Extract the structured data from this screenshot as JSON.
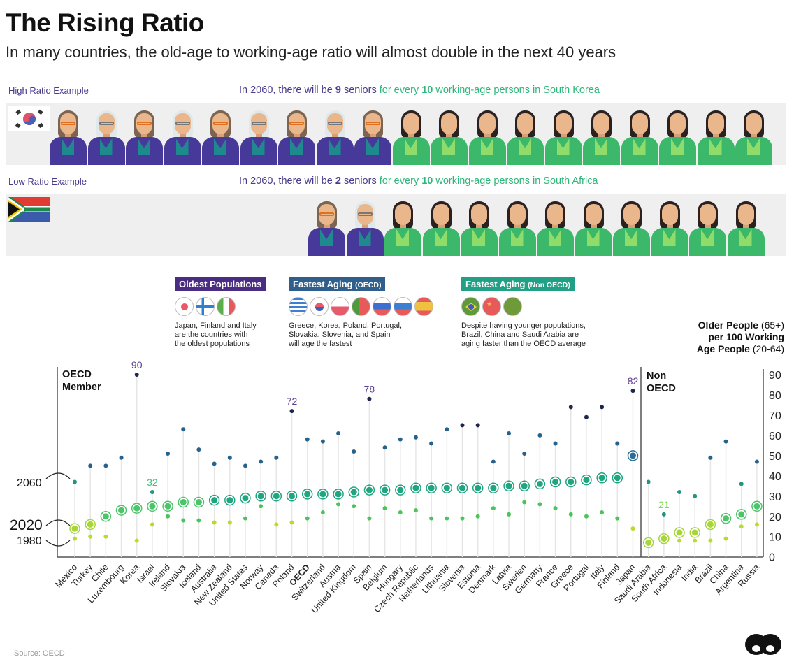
{
  "title": "The Rising Ratio",
  "subtitle": "In many countries, the old-age to working-age ratio will almost double in the next 40 years",
  "high_example": {
    "label": "High Ratio Example",
    "pre": "In 2060, there will be",
    "seniors": "9",
    "seniors_word": "seniors",
    "mid": "for every",
    "workers": "10",
    "post": "working-age persons in South Korea",
    "flag": "south-korea-flag",
    "senior_count": 9,
    "worker_count": 10
  },
  "low_example": {
    "label": "Low Ratio Example",
    "pre": "In 2060, there will be",
    "seniors": "2",
    "seniors_word": "seniors",
    "mid": "for every",
    "workers": "10",
    "post": "working-age persons in South Africa",
    "flag": "south-africa-flag",
    "senior_count": 2,
    "worker_count": 10
  },
  "legend": [
    {
      "title": "Oldest Populations",
      "suffix": "",
      "color": "#4b2c83",
      "flags": [
        "japan",
        "finland",
        "italy"
      ],
      "text": [
        "Japan, Finland and Italy",
        "are the countries with",
        "the oldest populations"
      ]
    },
    {
      "title": "Fastest Aging",
      "suffix": "(OECD)",
      "color": "#2f5f8a",
      "flags": [
        "greece",
        "korea",
        "poland",
        "portugal",
        "slovakia",
        "slovenia",
        "spain"
      ],
      "text": [
        "Greece, Korea, Poland, Portugal,",
        "Slovakia, Slovenia, and Spain",
        "will age the fastest"
      ]
    },
    {
      "title": "Fastest Aging",
      "suffix": "(Non OECD)",
      "color": "#22a085",
      "flags": [
        "brazil",
        "china",
        "saudi-arabia"
      ],
      "text": [
        "Despite having younger populations,",
        "Brazil, China and Saudi Arabia are",
        "aging faster than the OECD average"
      ]
    }
  ],
  "right_note": {
    "l1": "Older People",
    "l1b": "(65+)",
    "l2": "per 100 Working",
    "l3": "Age People",
    "l3b": "(20-64)"
  },
  "source": "Source: OECD",
  "chart_data": {
    "type": "dot-plot",
    "ylabel": "Older People (65+) per 100 Working Age People (20-64)",
    "ylim": [
      0,
      90
    ],
    "yticks": [
      0,
      10,
      20,
      30,
      40,
      50,
      60,
      70,
      80,
      90
    ],
    "groups": [
      {
        "label_l1": "OECD",
        "label_l2": "Member"
      },
      {
        "label_l1": "Non",
        "label_l2": "OECD"
      }
    ],
    "year_labels": {
      "y2060": "2060",
      "y2020": "2020",
      "y1980": "1980"
    },
    "categories": [
      "Mexico",
      "Turkey",
      "Chile",
      "Luxembourg",
      "Korea",
      "Israel",
      "Ireland",
      "Slovakia",
      "Iceland",
      "Australia",
      "New Zealand",
      "United States",
      "Norway",
      "Canada",
      "Poland",
      "OECD",
      "Switzerland",
      "Austria",
      "United Kingdom",
      "Spain",
      "Belgium",
      "Hungary",
      "Czech Republic",
      "Netherlands",
      "Lithuania",
      "Slovenia",
      "Estonia",
      "Denmark",
      "Latvia",
      "Sweden",
      "Germany",
      "France",
      "Greece",
      "Portugal",
      "Italy",
      "Finland",
      "Japan",
      "Saudi Arabia",
      "South Africa",
      "Indonesia",
      "India",
      "Brazil",
      "China",
      "Argentina",
      "Russia"
    ],
    "group_of": [
      0,
      0,
      0,
      0,
      0,
      0,
      0,
      0,
      0,
      0,
      0,
      0,
      0,
      0,
      0,
      0,
      0,
      0,
      0,
      0,
      0,
      0,
      0,
      0,
      0,
      0,
      0,
      0,
      0,
      0,
      0,
      0,
      0,
      0,
      0,
      0,
      0,
      1,
      1,
      1,
      1,
      1,
      1,
      1,
      1
    ],
    "series": [
      {
        "name": "2060",
        "values": [
          37,
          45,
          45,
          49,
          90,
          32,
          51,
          63,
          53,
          46,
          49,
          45,
          47,
          49,
          72,
          58,
          57,
          61,
          52,
          78,
          54,
          58,
          59,
          56,
          63,
          65,
          65,
          47,
          61,
          51,
          60,
          56,
          74,
          69,
          74,
          56,
          82,
          37,
          21,
          32,
          30,
          49,
          57,
          36,
          47
        ]
      },
      {
        "name": "2020",
        "values": [
          14,
          16,
          20,
          23,
          24,
          25,
          25,
          27,
          27,
          28,
          28,
          29,
          30,
          30,
          30,
          31,
          31,
          31,
          32,
          33,
          33,
          33,
          34,
          34,
          34,
          34,
          34,
          34,
          35,
          35,
          36,
          37,
          37,
          38,
          39,
          39,
          50,
          7,
          9,
          12,
          12,
          16,
          19,
          21,
          25
        ]
      },
      {
        "name": "1980",
        "values": [
          9,
          10,
          10,
          22,
          8,
          16,
          20,
          18,
          18,
          17,
          17,
          19,
          25,
          16,
          17,
          19,
          22,
          26,
          25,
          19,
          24,
          22,
          23,
          19,
          19,
          19,
          20,
          24,
          21,
          27,
          26,
          24,
          21,
          20,
          22,
          19,
          14,
          null,
          null,
          8,
          8,
          8,
          9,
          15,
          16
        ]
      }
    ],
    "annotations": [
      {
        "country": "Korea",
        "text": "90",
        "color": "#5b3d91"
      },
      {
        "country": "Poland",
        "text": "72",
        "color": "#5b3d91"
      },
      {
        "country": "Spain",
        "text": "78",
        "color": "#5b3d91"
      },
      {
        "country": "Japan",
        "text": "82",
        "color": "#5b3d91"
      },
      {
        "country": "Israel",
        "text": "32",
        "color": "#3cc07a"
      },
      {
        "country": "South Africa",
        "text": "21",
        "color": "#7ed957"
      }
    ],
    "bold_categories": [
      "OECD"
    ]
  }
}
